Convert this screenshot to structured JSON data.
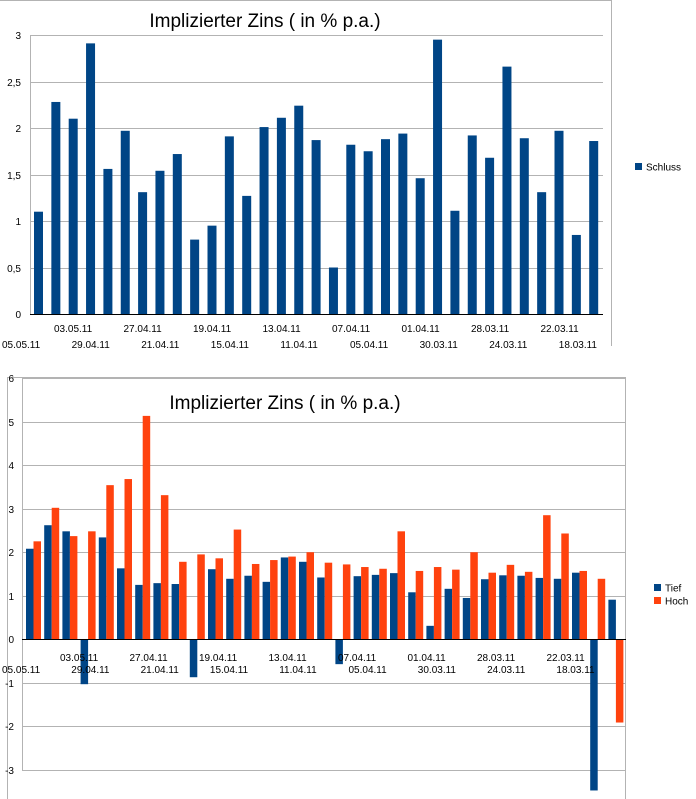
{
  "colors": {
    "blue": "#004586",
    "orange": "#ff420e",
    "grid": "#b3b3b3",
    "border": "#b3b3b3"
  },
  "chart_data": [
    {
      "type": "bar",
      "title": "Implizierter Zins ( in % p.a.)",
      "ylim": [
        0,
        3
      ],
      "yticks": [
        "0",
        "0,5",
        "1",
        "1,5",
        "2",
        "2,5",
        "3"
      ],
      "grid": true,
      "legend_position": "right",
      "x_labels_upper": [
        "03.05.11",
        "27.04.11",
        "19.04.11",
        "13.04.11",
        "07.04.11",
        "01.04.11",
        "28.03.11",
        "22.03.11"
      ],
      "x_labels_lower": [
        "05.05.11",
        "29.04.11",
        "21.04.11",
        "15.04.11",
        "11.04.11",
        "05.04.11",
        "30.03.11",
        "24.03.11",
        "18.03.11"
      ],
      "series": [
        {
          "name": "Schluss",
          "values": [
            1.1,
            2.28,
            2.1,
            2.91,
            1.56,
            1.97,
            1.31,
            1.54,
            1.72,
            0.8,
            0.95,
            1.91,
            1.27,
            2.01,
            2.11,
            2.24,
            1.87,
            0.5,
            1.82,
            1.75,
            1.88,
            1.94,
            1.46,
            2.95,
            1.11,
            1.92,
            1.68,
            2.66,
            1.89,
            1.31,
            1.97,
            0.85,
            1.86
          ]
        }
      ]
    },
    {
      "type": "bar",
      "title": "Implizierter Zins ( in % p.a.)",
      "ylim": [
        -3,
        6
      ],
      "yticks": [
        "-3",
        "-2",
        "-1",
        "0",
        "1",
        "2",
        "3",
        "4",
        "5",
        "6"
      ],
      "grid": true,
      "legend_position": "right",
      "x_labels_upper": [
        "03.05.11",
        "27.04.11",
        "19.04.11",
        "13.04.11",
        "07.04.11",
        "01.04.11",
        "28.03.11",
        "22.03.11"
      ],
      "x_labels_lower": [
        "05.05.11",
        "29.04.11",
        "21.04.11",
        "15.04.11",
        "11.04.11",
        "05.04.11",
        "30.03.11",
        "24.03.11",
        "18.03.11"
      ],
      "series": [
        {
          "name": "Tief",
          "values": [
            2.08,
            2.62,
            2.48,
            -1.03,
            2.34,
            1.63,
            1.25,
            1.29,
            1.27,
            -0.87,
            1.61,
            1.39,
            1.46,
            1.32,
            1.88,
            1.78,
            1.42,
            -0.57,
            1.45,
            1.48,
            1.52,
            1.08,
            0.31,
            1.16,
            0.95,
            1.38,
            1.47,
            1.46,
            1.41,
            1.39,
            1.53,
            -3.47,
            0.91
          ]
        },
        {
          "name": "Hoch",
          "values": [
            2.25,
            3.02,
            2.37,
            2.48,
            3.54,
            3.68,
            5.13,
            3.31,
            1.78,
            1.95,
            1.86,
            2.52,
            1.73,
            1.82,
            1.9,
            2.0,
            1.76,
            1.72,
            1.66,
            1.62,
            2.48,
            1.57,
            1.66,
            1.6,
            2.0,
            1.53,
            1.71,
            1.55,
            2.85,
            2.43,
            1.57,
            1.39,
            -1.91
          ]
        }
      ]
    }
  ]
}
